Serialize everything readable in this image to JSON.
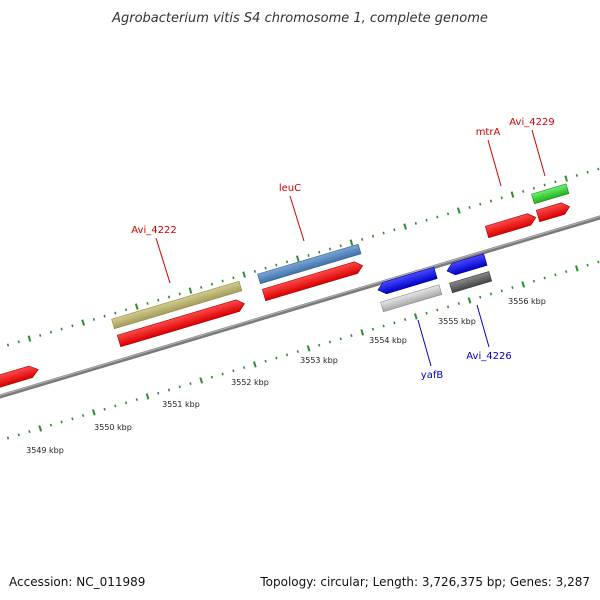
{
  "title": "Agrobacterium vitis S4 chromosome 1, complete genome",
  "footer": {
    "accession": "Accession: NC_011989",
    "summary": "Topology: circular; Length: 3,726,375 bp; Genes: 3,287"
  },
  "colors": {
    "background": "#ffffff",
    "backbone": "#8a8a8a",
    "ticks": "#2e8b2e",
    "label_forward": "#cc0000",
    "label_reverse": "#0000cc",
    "text": "#222222"
  },
  "scale_labels": [
    "3549 kbp",
    "3550 kbp",
    "3551 kbp",
    "3552 kbp",
    "3553 kbp",
    "3554 kbp",
    "3555 kbp",
    "3556 kbp"
  ],
  "gene_labels": [
    {
      "text": "Avi_4222",
      "strand": "forward"
    },
    {
      "text": "leuC",
      "strand": "forward"
    },
    {
      "text": "mtrA",
      "strand": "forward"
    },
    {
      "text": "Avi_4229",
      "strand": "forward"
    },
    {
      "text": "yafB",
      "strand": "reverse"
    },
    {
      "text": "Avi_4226",
      "strand": "reverse"
    }
  ]
}
